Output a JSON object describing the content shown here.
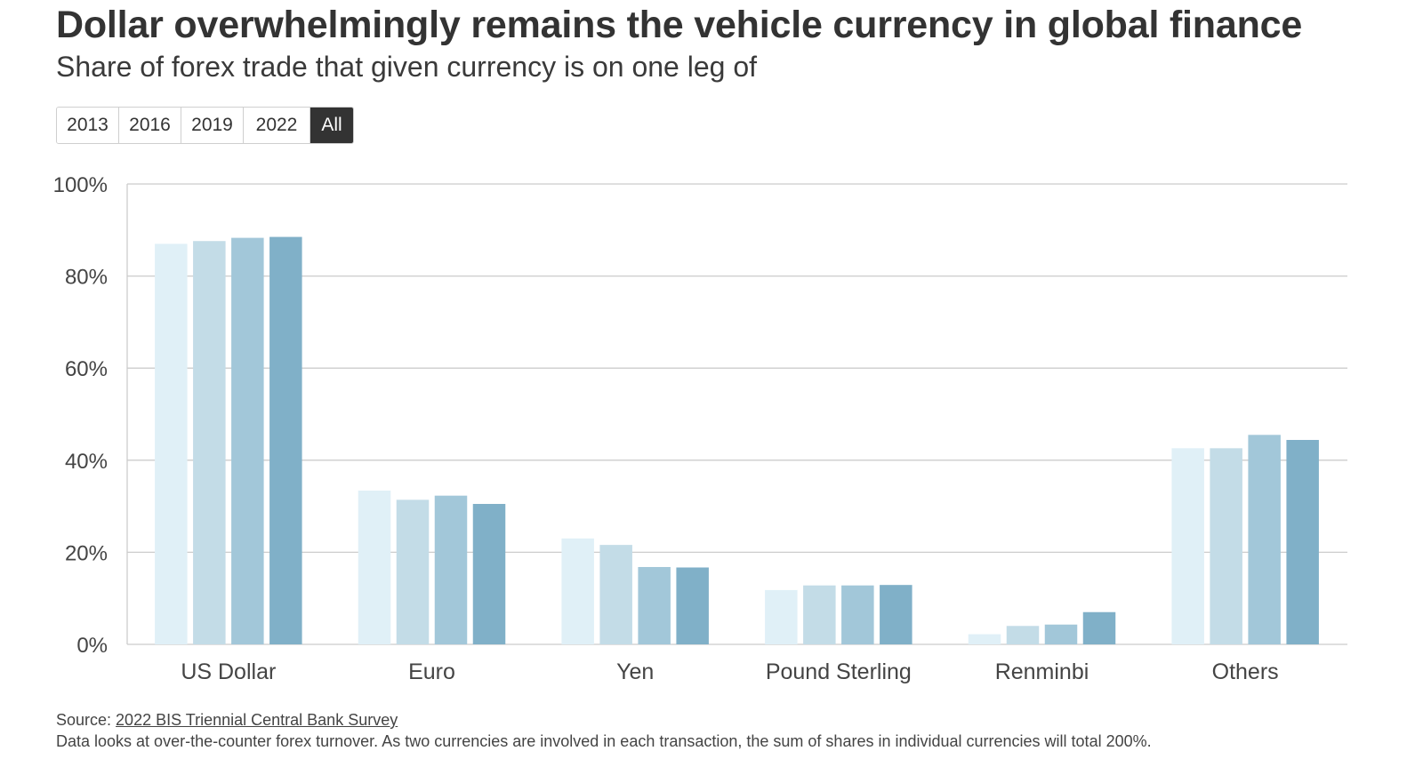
{
  "header": {
    "title": "Dollar overwhelmingly remains the vehicle currency in global finance",
    "subtitle": "Share of forex trade that given currency is on one leg of"
  },
  "tabs": [
    {
      "label": "2013",
      "active": false
    },
    {
      "label": "2016",
      "active": false
    },
    {
      "label": "2019",
      "active": false
    },
    {
      "label": "2022",
      "active": false
    },
    {
      "label": "All",
      "active": true
    }
  ],
  "footer": {
    "source_prefix": "Source: ",
    "source_link": "2022 BIS Triennial Central Bank Survey",
    "note": "Data looks at over-the-counter forex turnover. As two currencies are involved in each transaction, the sum of shares in individual currencies will total 200%."
  },
  "colors": {
    "series": [
      "#e0f0f7",
      "#c3dce7",
      "#a2c7d9",
      "#80b0c8"
    ],
    "grid": "#cccccc",
    "active_tab": "#333333"
  },
  "chart_data": {
    "type": "bar",
    "categories": [
      "US Dollar",
      "Euro",
      "Yen",
      "Pound Sterling",
      "Renminbi",
      "Others"
    ],
    "series": [
      {
        "values": [
          87.0,
          33.4,
          23.0,
          11.8,
          2.2,
          42.6
        ]
      },
      {
        "values": [
          87.6,
          31.4,
          21.6,
          12.8,
          4.0,
          42.6
        ]
      },
      {
        "values": [
          88.3,
          32.3,
          16.8,
          12.8,
          4.3,
          45.5
        ]
      },
      {
        "values": [
          88.5,
          30.5,
          16.7,
          12.9,
          7.0,
          44.4
        ]
      }
    ],
    "yticks": [
      "0%",
      "20%",
      "40%",
      "60%",
      "80%",
      "100%"
    ],
    "ylim": [
      0,
      100
    ],
    "grid": true
  }
}
